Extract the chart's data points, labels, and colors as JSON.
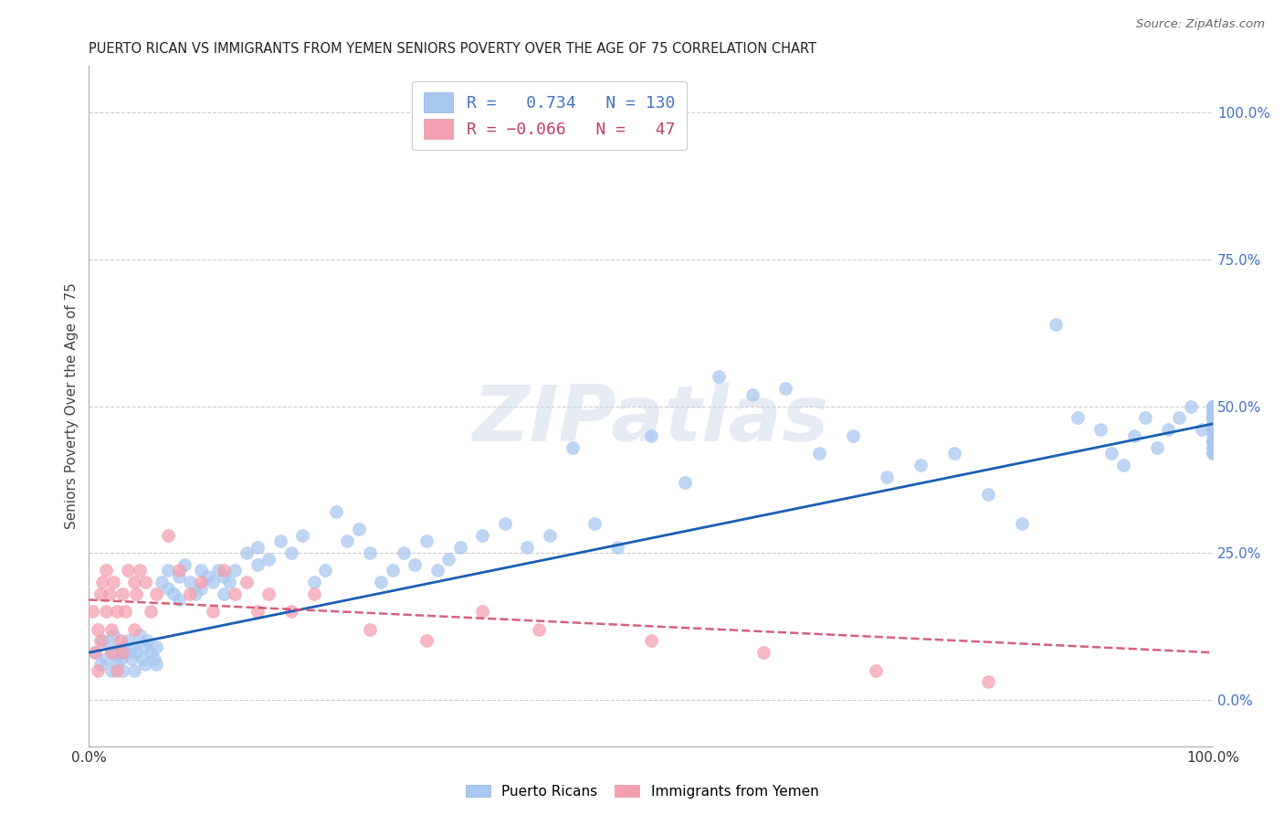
{
  "title": "PUERTO RICAN VS IMMIGRANTS FROM YEMEN SENIORS POVERTY OVER THE AGE OF 75 CORRELATION CHART",
  "source": "Source: ZipAtlas.com",
  "ylabel": "Seniors Poverty Over the Age of 75",
  "r_blue": 0.734,
  "n_blue": 130,
  "r_pink": -0.066,
  "n_pink": 47,
  "blue_color": "#a8c8f0",
  "blue_line_color": "#1a5fb4",
  "pink_color": "#f4a0b0",
  "pink_line_color": "#d05070",
  "watermark": "ZIPatlas",
  "ytick_labels": [
    "0.0%",
    "25.0%",
    "50.0%",
    "75.0%",
    "100.0%"
  ],
  "ytick_vals": [
    0,
    25,
    50,
    75,
    100
  ],
  "xlim": [
    0,
    100
  ],
  "ylim": [
    -8,
    108
  ],
  "blue_regression": [
    0,
    100,
    8.0,
    47.0
  ],
  "pink_regression": [
    0,
    100,
    17.0,
    8.0
  ],
  "blue_x": [
    0.5,
    1.0,
    1.2,
    1.5,
    1.8,
    2.0,
    2.2,
    2.5,
    2.5,
    2.8,
    3.0,
    3.0,
    3.2,
    3.5,
    3.8,
    4.0,
    4.0,
    4.2,
    4.5,
    4.8,
    5.0,
    5.0,
    5.2,
    5.5,
    5.8,
    6.0,
    6.0,
    6.5,
    7.0,
    7.0,
    7.5,
    8.0,
    8.0,
    8.5,
    9.0,
    9.5,
    10.0,
    10.0,
    10.5,
    11.0,
    11.5,
    12.0,
    12.0,
    12.5,
    13.0,
    14.0,
    15.0,
    15.0,
    16.0,
    17.0,
    18.0,
    19.0,
    20.0,
    21.0,
    22.0,
    23.0,
    24.0,
    25.0,
    26.0,
    27.0,
    28.0,
    29.0,
    30.0,
    31.0,
    32.0,
    33.0,
    35.0,
    37.0,
    39.0,
    41.0,
    43.0,
    45.0,
    47.0,
    50.0,
    53.0,
    56.0,
    59.0,
    62.0,
    65.0,
    68.0,
    71.0,
    74.0,
    77.0,
    80.0,
    83.0,
    86.0,
    88.0,
    90.0,
    91.0,
    92.0,
    93.0,
    94.0,
    95.0,
    96.0,
    97.0,
    98.0,
    99.0,
    100.0,
    100.0,
    100.0,
    100.0,
    100.0,
    100.0,
    100.0,
    100.0,
    100.0,
    100.0,
    100.0,
    100.0,
    100.0,
    100.0,
    100.0,
    100.0,
    100.0,
    100.0,
    100.0,
    100.0,
    100.0,
    100.0,
    100.0,
    100.0,
    100.0,
    100.0,
    100.0,
    100.0,
    100.0,
    100.0,
    100.0,
    100.0,
    100.0
  ],
  "blue_y": [
    8.0,
    6.0,
    10.0,
    7.0,
    9.0,
    5.0,
    11.0,
    8.0,
    6.0,
    7.0,
    9.0,
    5.0,
    8.0,
    10.0,
    7.0,
    9.0,
    5.0,
    8.0,
    11.0,
    7.0,
    9.0,
    6.0,
    10.0,
    8.0,
    7.0,
    9.0,
    6.0,
    20.0,
    19.0,
    22.0,
    18.0,
    17.0,
    21.0,
    23.0,
    20.0,
    18.0,
    22.0,
    19.0,
    21.0,
    20.0,
    22.0,
    18.0,
    21.0,
    20.0,
    22.0,
    25.0,
    23.0,
    26.0,
    24.0,
    27.0,
    25.0,
    28.0,
    20.0,
    22.0,
    32.0,
    27.0,
    29.0,
    25.0,
    20.0,
    22.0,
    25.0,
    23.0,
    27.0,
    22.0,
    24.0,
    26.0,
    28.0,
    30.0,
    26.0,
    28.0,
    43.0,
    30.0,
    26.0,
    45.0,
    37.0,
    55.0,
    52.0,
    53.0,
    42.0,
    45.0,
    38.0,
    40.0,
    42.0,
    35.0,
    30.0,
    64.0,
    48.0,
    46.0,
    42.0,
    40.0,
    45.0,
    48.0,
    43.0,
    46.0,
    48.0,
    50.0,
    46.0,
    47.0,
    49.0,
    48.0,
    46.0,
    44.0,
    50.0,
    48.0,
    43.0,
    47.0,
    44.0,
    48.0,
    46.0,
    42.0,
    49.0,
    45.0,
    47.0,
    44.0,
    48.0,
    50.0,
    46.0,
    43.0,
    47.0,
    44.0,
    48.0,
    50.0,
    46.0,
    50.0,
    48.0,
    46.0,
    42.0,
    44.0,
    48.0,
    50.0
  ],
  "pink_x": [
    0.3,
    0.5,
    0.8,
    0.8,
    1.0,
    1.0,
    1.2,
    1.5,
    1.5,
    1.8,
    2.0,
    2.0,
    2.2,
    2.5,
    2.5,
    2.8,
    3.0,
    3.0,
    3.2,
    3.5,
    4.0,
    4.0,
    4.2,
    4.5,
    5.0,
    5.5,
    6.0,
    7.0,
    8.0,
    9.0,
    10.0,
    11.0,
    12.0,
    13.0,
    14.0,
    15.0,
    16.0,
    18.0,
    20.0,
    25.0,
    30.0,
    35.0,
    40.0,
    50.0,
    60.0,
    70.0,
    80.0
  ],
  "pink_y": [
    15.0,
    8.0,
    12.0,
    5.0,
    18.0,
    10.0,
    20.0,
    15.0,
    22.0,
    18.0,
    12.0,
    8.0,
    20.0,
    15.0,
    5.0,
    10.0,
    18.0,
    8.0,
    15.0,
    22.0,
    20.0,
    12.0,
    18.0,
    22.0,
    20.0,
    15.0,
    18.0,
    28.0,
    22.0,
    18.0,
    20.0,
    15.0,
    22.0,
    18.0,
    20.0,
    15.0,
    18.0,
    15.0,
    18.0,
    12.0,
    10.0,
    15.0,
    12.0,
    10.0,
    8.0,
    5.0,
    3.0
  ]
}
